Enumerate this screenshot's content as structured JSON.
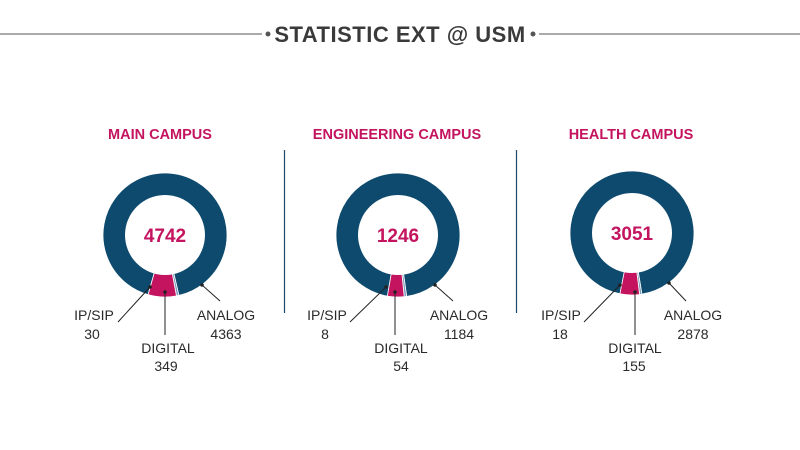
{
  "title": "STATISTIC EXT @ USM",
  "colors": {
    "analog": "#0d4a6e",
    "digital": "#c4145f",
    "ipsip": "#7a9bbd",
    "title": "#3a3a3a",
    "accent": "#c4145f",
    "divider": "#1a4a6e"
  },
  "chart_data": [
    {
      "type": "pie",
      "title": "MAIN CAMPUS",
      "total": "4742",
      "categories": [
        "ANALOG",
        "IP/SIP",
        "DIGITAL"
      ],
      "values": [
        4363,
        30,
        349
      ],
      "labels": [
        {
          "name": "IP/SIP",
          "value": "30"
        },
        {
          "name": "DIGITAL",
          "value": "349"
        },
        {
          "name": "ANALOG",
          "value": "4363"
        }
      ]
    },
    {
      "type": "pie",
      "title": "ENGINEERING CAMPUS",
      "total": "1246",
      "categories": [
        "ANALOG",
        "IP/SIP",
        "DIGITAL"
      ],
      "values": [
        1184,
        8,
        54
      ],
      "labels": [
        {
          "name": "IP/SIP",
          "value": "8"
        },
        {
          "name": "DIGITAL",
          "value": "54"
        },
        {
          "name": "ANALOG",
          "value": "1184"
        }
      ]
    },
    {
      "type": "pie",
      "title": "HEALTH CAMPUS",
      "total": "3051",
      "categories": [
        "ANALOG",
        "IP/SIP",
        "DIGITAL"
      ],
      "values": [
        2878,
        18,
        155
      ],
      "labels": [
        {
          "name": "IP/SIP",
          "value": "18"
        },
        {
          "name": "DIGITAL",
          "value": "155"
        },
        {
          "name": "ANALOG",
          "value": "2878"
        }
      ]
    }
  ]
}
